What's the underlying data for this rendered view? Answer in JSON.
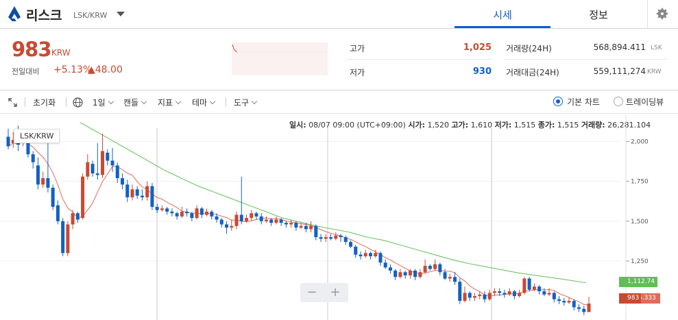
{
  "header": {
    "coin_name": "리스크",
    "pair": "LSK/KRW",
    "tabs": [
      "시세",
      "정보"
    ]
  },
  "price": {
    "current": "983",
    "unit": "KRW",
    "change_label": "전일대비",
    "change_rate": "+5.13%",
    "change_amount": "▲48.00"
  },
  "stats": {
    "high_label": "고가",
    "high_value": "1,025",
    "low_label": "저가",
    "low_value": "930",
    "volume_label": "거래량(24H)",
    "volume_value": "568,894.411",
    "volume_unit": "LSK",
    "amount_label": "거래대금(24H)",
    "amount_value": "559,111,274",
    "amount_unit": "KRW"
  },
  "toolbar": {
    "reset": "초기화",
    "interval": "1일",
    "chart_type": "캔들",
    "indicator": "지표",
    "theme": "테마",
    "tools": "도구",
    "basic_chart": "기본 차트",
    "tradingview": "트레이딩뷰"
  },
  "ohlc_bar": {
    "date_label": "일시:",
    "date_value": "08/07 09:00 (UTC+09:00)",
    "open_label": "시가:",
    "open_value": "1,520",
    "high_label": "고가:",
    "high_value": "1,610",
    "low_label": "저가:",
    "low_value": "1,515",
    "close_label": "종가:",
    "close_value": "1,515",
    "volume_label": "거래량:",
    "volume_value": "26,281.104"
  },
  "chart_data": {
    "type": "candlestick",
    "symbol": "LSK/KRW",
    "y_ticks": [
      "2,000",
      "1,750",
      "1,500",
      "1,250"
    ],
    "ylim": [
      880,
      2170
    ],
    "ma_long_label": "1,112.74",
    "ma_short_label": "6.333",
    "last_price_label": "983",
    "ma_long": [
      2120,
      2060,
      2000,
      1940,
      1880,
      1820,
      1770,
      1720,
      1680,
      1640,
      1600,
      1560,
      1520,
      1495,
      1470,
      1450,
      1430,
      1400,
      1380,
      1350,
      1320,
      1290,
      1260,
      1235,
      1215,
      1195,
      1175,
      1160,
      1145,
      1130,
      1113
    ],
    "candles": [
      [
        2030,
        1970,
        2080,
        1950
      ],
      [
        1990,
        2010,
        2060,
        1960
      ],
      [
        2020,
        1980,
        2100,
        1940
      ],
      [
        1990,
        2040,
        2070,
        1970
      ],
      [
        2030,
        1920,
        2050,
        1900
      ],
      [
        1920,
        1870,
        1940,
        1830
      ],
      [
        1850,
        1730,
        1900,
        1700
      ],
      [
        1730,
        1770,
        1810,
        1710
      ],
      [
        1770,
        1710,
        2020,
        1680
      ],
      [
        1710,
        1590,
        1730,
        1570
      ],
      [
        1600,
        1500,
        1630,
        1480
      ],
      [
        1500,
        1300,
        1520,
        1280
      ],
      [
        1300,
        1480,
        1500,
        1280
      ],
      [
        1480,
        1550,
        1570,
        1450
      ],
      [
        1550,
        1510,
        1560,
        1490
      ],
      [
        1520,
        1780,
        1800,
        1510
      ],
      [
        1780,
        1870,
        1920,
        1760
      ],
      [
        1860,
        1800,
        1880,
        1780
      ],
      [
        1800,
        1790,
        1990,
        1760
      ],
      [
        1790,
        1940,
        2050,
        1770
      ],
      [
        1930,
        1880,
        1950,
        1850
      ],
      [
        1880,
        1850,
        1960,
        1810
      ],
      [
        1850,
        1770,
        1870,
        1740
      ],
      [
        1770,
        1730,
        1800,
        1700
      ],
      [
        1730,
        1650,
        1760,
        1620
      ],
      [
        1650,
        1700,
        1730,
        1630
      ],
      [
        1700,
        1660,
        1720,
        1640
      ],
      [
        1660,
        1650,
        1700,
        1630
      ],
      [
        1650,
        1720,
        1750,
        1630
      ],
      [
        1720,
        1590,
        1740,
        1570
      ],
      [
        1590,
        1570,
        1610,
        1550
      ],
      [
        1570,
        1580,
        1600,
        1560
      ],
      [
        1580,
        1560,
        1590,
        1540
      ],
      [
        1560,
        1550,
        1580,
        1530
      ],
      [
        1550,
        1530,
        1560,
        1510
      ],
      [
        1530,
        1560,
        1590,
        1520
      ],
      [
        1560,
        1550,
        1580,
        1530
      ],
      [
        1550,
        1520,
        1560,
        1500
      ],
      [
        1520,
        1580,
        1600,
        1510
      ],
      [
        1580,
        1540,
        1590,
        1520
      ],
      [
        1540,
        1560,
        1580,
        1530
      ],
      [
        1560,
        1530,
        1570,
        1510
      ],
      [
        1530,
        1510,
        1550,
        1490
      ],
      [
        1510,
        1480,
        1520,
        1460
      ],
      [
        1480,
        1460,
        1500,
        1420
      ],
      [
        1460,
        1470,
        1510,
        1440
      ],
      [
        1470,
        1540,
        1560,
        1450
      ],
      [
        1540,
        1500,
        1780,
        1480
      ],
      [
        1500,
        1520,
        1540,
        1490
      ],
      [
        1520,
        1550,
        1570,
        1500
      ],
      [
        1550,
        1530,
        1560,
        1510
      ],
      [
        1530,
        1500,
        1550,
        1480
      ],
      [
        1500,
        1510,
        1530,
        1490
      ],
      [
        1510,
        1490,
        1520,
        1470
      ],
      [
        1490,
        1510,
        1530,
        1480
      ],
      [
        1510,
        1490,
        1520,
        1470
      ],
      [
        1490,
        1480,
        1500,
        1460
      ],
      [
        1480,
        1490,
        1510,
        1460
      ],
      [
        1490,
        1460,
        1500,
        1440
      ],
      [
        1460,
        1470,
        1490,
        1450
      ],
      [
        1470,
        1450,
        1490,
        1430
      ],
      [
        1450,
        1470,
        1500,
        1430
      ],
      [
        1470,
        1400,
        1480,
        1380
      ],
      [
        1400,
        1390,
        1420,
        1370
      ],
      [
        1390,
        1400,
        1420,
        1370
      ],
      [
        1400,
        1390,
        1420,
        1380
      ],
      [
        1390,
        1410,
        1430,
        1380
      ],
      [
        1410,
        1400,
        1420,
        1370
      ],
      [
        1400,
        1370,
        1410,
        1350
      ],
      [
        1370,
        1340,
        1380,
        1330
      ],
      [
        1340,
        1290,
        1350,
        1270
      ],
      [
        1290,
        1280,
        1310,
        1260
      ],
      [
        1280,
        1300,
        1320,
        1270
      ],
      [
        1300,
        1280,
        1310,
        1260
      ],
      [
        1280,
        1300,
        1320,
        1270
      ],
      [
        1300,
        1240,
        1310,
        1220
      ],
      [
        1240,
        1210,
        1260,
        1200
      ],
      [
        1210,
        1190,
        1230,
        1170
      ],
      [
        1190,
        1150,
        1200,
        1130
      ],
      [
        1150,
        1180,
        1200,
        1140
      ],
      [
        1180,
        1160,
        1190,
        1140
      ],
      [
        1160,
        1190,
        1200,
        1140
      ],
      [
        1190,
        1150,
        1200,
        1130
      ],
      [
        1150,
        1180,
        1200,
        1140
      ],
      [
        1180,
        1220,
        1260,
        1170
      ],
      [
        1220,
        1200,
        1230,
        1190
      ],
      [
        1200,
        1230,
        1260,
        1190
      ],
      [
        1230,
        1180,
        1240,
        1160
      ],
      [
        1180,
        1140,
        1200,
        1130
      ],
      [
        1140,
        1150,
        1170,
        1120
      ],
      [
        1150,
        1120,
        1180,
        1100
      ],
      [
        1120,
        1000,
        1140,
        980
      ],
      [
        1000,
        1050,
        1090,
        990
      ],
      [
        1050,
        1020,
        1060,
        1000
      ],
      [
        1020,
        1030,
        1050,
        1000
      ],
      [
        1030,
        1040,
        1060,
        1010
      ],
      [
        1040,
        1010,
        1060,
        990
      ],
      [
        1010,
        1050,
        1070,
        1000
      ],
      [
        1050,
        1060,
        1080,
        1030
      ],
      [
        1060,
        1050,
        1080,
        1030
      ],
      [
        1050,
        1040,
        1070,
        1020
      ],
      [
        1040,
        1060,
        1080,
        1030
      ],
      [
        1060,
        1030,
        1070,
        1010
      ],
      [
        1030,
        1050,
        1070,
        1020
      ],
      [
        1050,
        1140,
        1150,
        1040
      ],
      [
        1140,
        1070,
        1150,
        1060
      ],
      [
        1070,
        1090,
        1110,
        1060
      ],
      [
        1090,
        1060,
        1100,
        1040
      ],
      [
        1060,
        1040,
        1080,
        1030
      ],
      [
        1040,
        1050,
        1080,
        1030
      ],
      [
        1050,
        1010,
        1060,
        990
      ],
      [
        1010,
        1000,
        1030,
        980
      ],
      [
        1000,
        990,
        1020,
        970
      ],
      [
        990,
        1000,
        1020,
        980
      ],
      [
        1000,
        960,
        1010,
        940
      ],
      [
        960,
        950,
        980,
        930
      ],
      [
        950,
        930,
        970,
        910
      ],
      [
        930,
        983,
        1025,
        930
      ]
    ]
  },
  "colors": {
    "up": "#c84a31",
    "down": "#1261c4",
    "ma_long": "#5fbe55",
    "ma_short": "#e26b5b",
    "accent": "#115dcb"
  },
  "zoom": {
    "minus": "−",
    "plus": "+"
  }
}
